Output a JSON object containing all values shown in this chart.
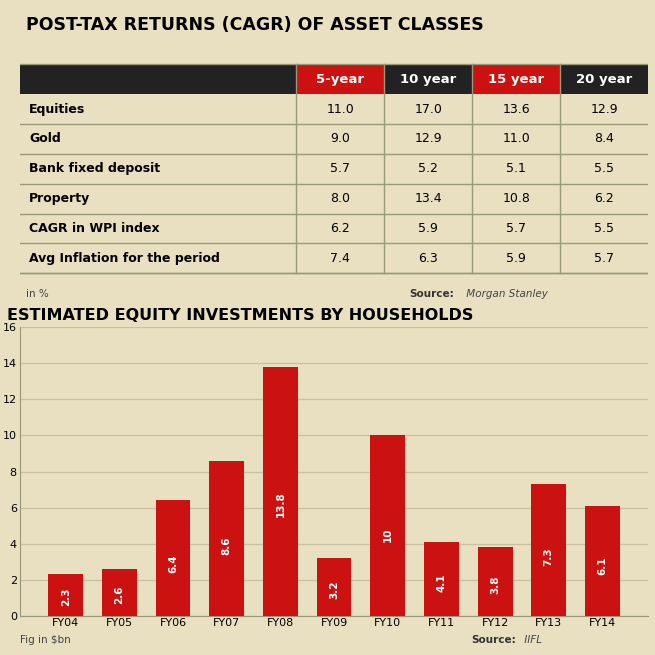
{
  "table_title": "POST-TAX RETURNS (CAGR) OF ASSET CLASSES",
  "table_bg": "#e8e0c0",
  "header_bg_dark": "#222222",
  "header_bg_red": "#cc1111",
  "header_cols": [
    "5-year",
    "10 year",
    "15 year",
    "20 year"
  ],
  "header_red_cols": [
    0,
    2
  ],
  "row_labels": [
    "Equities",
    "Gold",
    "Bank fixed deposit",
    "Property",
    "CAGR in WPI index",
    "Avg Inflation for the period"
  ],
  "table_data": [
    [
      "11.0",
      "17.0",
      "13.6",
      "12.9"
    ],
    [
      "9.0",
      "12.9",
      "11.0",
      "8.4"
    ],
    [
      "5.7",
      "5.2",
      "5.1",
      "5.5"
    ],
    [
      "8.0",
      "13.4",
      "10.8",
      "6.2"
    ],
    [
      "6.2",
      "5.9",
      "5.7",
      "5.5"
    ],
    [
      "7.4",
      "6.3",
      "5.9",
      "5.7"
    ]
  ],
  "table_note": "in %",
  "table_source_bold": "Source:",
  "table_source_italic": " Morgan Stanley",
  "chart_title": "ESTIMATED EQUITY INVESTMENTS BY HOUSEHOLDS",
  "chart_bg": "#e8e0c0",
  "bar_color": "#cc1111",
  "bar_categories": [
    "FY04",
    "FY05",
    "FY06",
    "FY07",
    "FY08",
    "FY09",
    "FY10",
    "FY11",
    "FY12",
    "FY13",
    "FY14"
  ],
  "bar_values": [
    2.3,
    2.6,
    6.4,
    8.6,
    13.8,
    3.2,
    10.0,
    4.1,
    3.8,
    7.3,
    6.1
  ],
  "bar_labels": [
    "2.3",
    "2.6",
    "6.4",
    "8.6",
    "13.8",
    "3.2",
    "10",
    "4.1",
    "3.8",
    "7.3",
    "6.1"
  ],
  "chart_ylabel": "Fig in $bn",
  "chart_source_bold": "Source:",
  "chart_source_italic": " IIFL",
  "chart_ylim": [
    0,
    16
  ],
  "chart_yticks": [
    0,
    2,
    4,
    6,
    8,
    10,
    12,
    14,
    16
  ],
  "overall_bg": "#e8e0c0",
  "row_separator_color": "#999977",
  "col_separator_color": "#999977",
  "grid_color": "#c8c0a0"
}
